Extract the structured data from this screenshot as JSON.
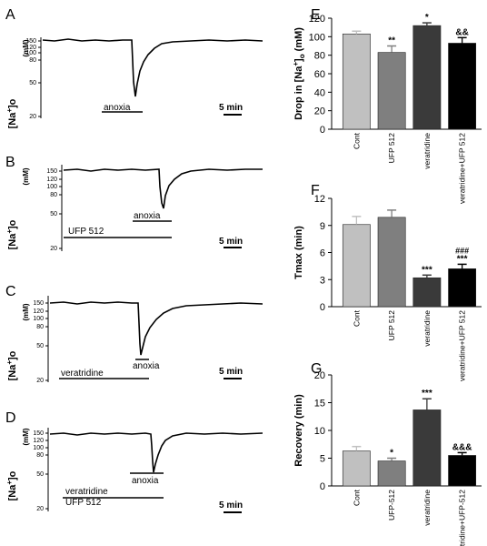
{
  "traces": [
    {
      "id": "A",
      "letter": "A",
      "ylabel_main": "[Na",
      "ylabel_sup": "+",
      "ylabel_end": "]o",
      "unit": "(mM)",
      "ticks": [
        "150",
        "120",
        "100",
        "80",
        "50",
        "20"
      ],
      "bars": [
        {
          "label": "anoxia",
          "label_pos": "below"
        }
      ],
      "scale": "5 min"
    },
    {
      "id": "B",
      "letter": "B",
      "ylabel_main": "[Na",
      "ylabel_sup": "+",
      "ylabel_end": "]o",
      "unit": "(mM)",
      "ticks": [
        "150",
        "120",
        "100",
        "80",
        "50",
        "20"
      ],
      "bars": [
        {
          "label": "anoxia",
          "label_pos": "above"
        },
        {
          "label": "UFP 512",
          "label_pos": "above"
        }
      ],
      "scale": "5 min"
    },
    {
      "id": "C",
      "letter": "C",
      "ylabel_main": "[Na",
      "ylabel_sup": "+",
      "ylabel_end": "]o",
      "unit": "(mM)",
      "ticks": [
        "150",
        "120",
        "100",
        "80",
        "50",
        "20"
      ],
      "bars": [
        {
          "label": "anoxia",
          "label_pos": "below"
        },
        {
          "label": "veratridine",
          "label_pos": "above"
        }
      ],
      "scale": "5 min"
    },
    {
      "id": "D",
      "letter": "D",
      "ylabel_main": "[Na",
      "ylabel_sup": "+",
      "ylabel_end": "]o",
      "unit": "(mM)",
      "ticks": [
        "150",
        "120",
        "100",
        "80",
        "50",
        "20"
      ],
      "bars": [
        {
          "label": "anoxia",
          "label_pos": "below"
        },
        {
          "label": "veratridine",
          "label_pos": "above",
          "label2": "UFP 512"
        }
      ],
      "scale": "5 min"
    }
  ],
  "colors": {
    "Cont": "#c0c0c0",
    "UFP 512": "#7f7f7f",
    "veratridine": "#3a3a3a",
    "veratridine+UFP 512": "#000000"
  },
  "chart_data": [
    {
      "type": "bar",
      "panel": "E",
      "ylabel_main": "Drop in [Na",
      "ylabel_sup": "+",
      "ylabel_end": "]",
      "ylabel_sub": "o",
      "ylabel_unit": " (mM)",
      "categories": [
        "Cont",
        "UFP 512",
        "veratridine",
        "veratridine+UFP 512"
      ],
      "values": [
        103,
        83,
        112,
        93
      ],
      "errors": [
        3,
        7,
        3,
        6
      ],
      "annotations": [
        "",
        "**",
        "*",
        "&&"
      ],
      "ylim": [
        0,
        120
      ],
      "yticks": [
        0,
        20,
        40,
        60,
        80,
        100,
        120
      ]
    },
    {
      "type": "bar",
      "panel": "F",
      "ylabel_main": "Tmax (min)",
      "categories": [
        "Cont",
        "UFP 512",
        "veratridine",
        "veratridine+UFP 512"
      ],
      "values": [
        9.1,
        9.9,
        3.2,
        4.2
      ],
      "errors": [
        0.9,
        0.8,
        0.3,
        0.5
      ],
      "annotations": [
        "",
        "",
        "***",
        "***"
      ],
      "annotations2": [
        "",
        "",
        "",
        "###"
      ],
      "ylim": [
        0,
        12
      ],
      "yticks": [
        0,
        3,
        6,
        9,
        12
      ]
    },
    {
      "type": "bar",
      "panel": "G",
      "ylabel_main": "Recovery (min)",
      "categories": [
        "Cont",
        "UFP-512",
        "veratridine",
        "veratridine+UFP-512"
      ],
      "values": [
        6.3,
        4.5,
        13.7,
        5.5
      ],
      "errors": [
        0.8,
        0.5,
        2.0,
        0.5
      ],
      "annotations": [
        "",
        "*",
        "***",
        "&&&"
      ],
      "ylim": [
        0,
        20
      ],
      "yticks": [
        0,
        5,
        10,
        15,
        20
      ]
    }
  ]
}
